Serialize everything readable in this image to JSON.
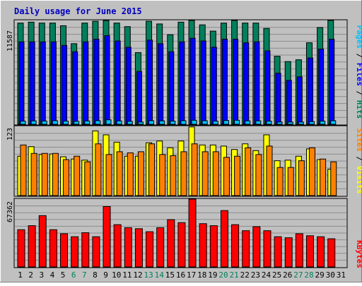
{
  "title": "Daily usage for June 2015",
  "colors": {
    "background": "#c0c0c0",
    "plot_bg": "#c0c0c0",
    "grid": "#8c8c8c",
    "title": "#0000c0",
    "hits": "#00805c",
    "files": "#0000ff",
    "pages": "#00c0ff",
    "visits": "#ffff00",
    "sites": "#ff8000",
    "kbytes": "#ff0000",
    "weekend_day": "#00805c",
    "weekday": "#000000"
  },
  "legend": {
    "top": [
      "Pages",
      "Files",
      "Hits"
    ],
    "middle": [
      "Sites",
      "Visits"
    ],
    "bottom": [
      "KBytes"
    ]
  },
  "chart_data": [
    {
      "type": "bar",
      "panel": "hits_files_pages",
      "y_max_label": "11587",
      "ylim": [
        0,
        11587
      ],
      "categories": [
        "1",
        "2",
        "3",
        "4",
        "5",
        "6",
        "7",
        "8",
        "9",
        "10",
        "11",
        "12",
        "13",
        "14",
        "15",
        "16",
        "17",
        "18",
        "19",
        "20",
        "21",
        "22",
        "23",
        "24",
        "25",
        "26",
        "27",
        "28",
        "29",
        "30",
        "31"
      ],
      "series": [
        {
          "name": "Hits",
          "values": [
            11300,
            11400,
            11300,
            11300,
            11000,
            9000,
            11300,
            11500,
            12000,
            11300,
            10900,
            8000,
            11500,
            11200,
            10000,
            11400,
            11800,
            11100,
            10400,
            11300,
            11900,
            11300,
            11300,
            10700,
            7600,
            7000,
            7200,
            9100,
            10800,
            11600,
            null
          ]
        },
        {
          "name": "Files",
          "values": [
            9200,
            9200,
            9200,
            9200,
            8800,
            8100,
            9200,
            9500,
            9900,
            9300,
            8600,
            5900,
            9400,
            9000,
            8100,
            9200,
            9600,
            9300,
            8600,
            9500,
            9500,
            9100,
            9200,
            8200,
            5700,
            4900,
            5300,
            7400,
            8400,
            9500,
            null
          ]
        },
        {
          "name": "Pages",
          "values": [
            350,
            380,
            360,
            400,
            350,
            330,
            370,
            400,
            500,
            380,
            330,
            250,
            400,
            380,
            350,
            400,
            450,
            400,
            350,
            420,
            450,
            380,
            380,
            350,
            250,
            250,
            250,
            300,
            350,
            400,
            null
          ]
        }
      ]
    },
    {
      "type": "bar",
      "panel": "visits_sites",
      "y_max_label": "123",
      "ylim": [
        0,
        123
      ],
      "categories": [
        "1",
        "2",
        "3",
        "4",
        "5",
        "6",
        "7",
        "8",
        "9",
        "10",
        "11",
        "12",
        "13",
        "14",
        "15",
        "16",
        "17",
        "18",
        "19",
        "20",
        "21",
        "22",
        "23",
        "24",
        "25",
        "26",
        "27",
        "28",
        "29",
        "30",
        "31"
      ],
      "series": [
        {
          "name": "Visits",
          "values": [
            70,
            87,
            73,
            74,
            69,
            65,
            63,
            115,
            108,
            95,
            70,
            70,
            94,
            97,
            85,
            97,
            122,
            90,
            90,
            88,
            82,
            92,
            80,
            108,
            62,
            63,
            70,
            83,
            64,
            47,
            null
          ]
        },
        {
          "name": "Sites",
          "values": [
            90,
            75,
            75,
            75,
            64,
            70,
            60,
            92,
            73,
            78,
            76,
            78,
            92,
            73,
            71,
            78,
            92,
            78,
            78,
            68,
            70,
            85,
            73,
            88,
            50,
            50,
            62,
            85,
            65,
            60,
            null
          ]
        }
      ]
    },
    {
      "type": "bar",
      "panel": "kbytes",
      "y_max_label": "67362",
      "ylim": [
        0,
        67362
      ],
      "categories": [
        "1",
        "2",
        "3",
        "4",
        "5",
        "6",
        "7",
        "8",
        "9",
        "10",
        "11",
        "12",
        "13",
        "14",
        "15",
        "16",
        "17",
        "18",
        "19",
        "20",
        "21",
        "22",
        "23",
        "24",
        "25",
        "26",
        "27",
        "28",
        "29",
        "30",
        "31"
      ],
      "series": [
        {
          "name": "KBytes",
          "values": [
            37000,
            41000,
            51000,
            37000,
            33000,
            30000,
            34000,
            30000,
            60000,
            42000,
            39000,
            38000,
            35000,
            39000,
            47000,
            44000,
            70000,
            43000,
            41000,
            56000,
            42000,
            36000,
            40000,
            36000,
            30000,
            29000,
            33000,
            31000,
            30000,
            28000,
            null
          ]
        }
      ]
    }
  ]
}
